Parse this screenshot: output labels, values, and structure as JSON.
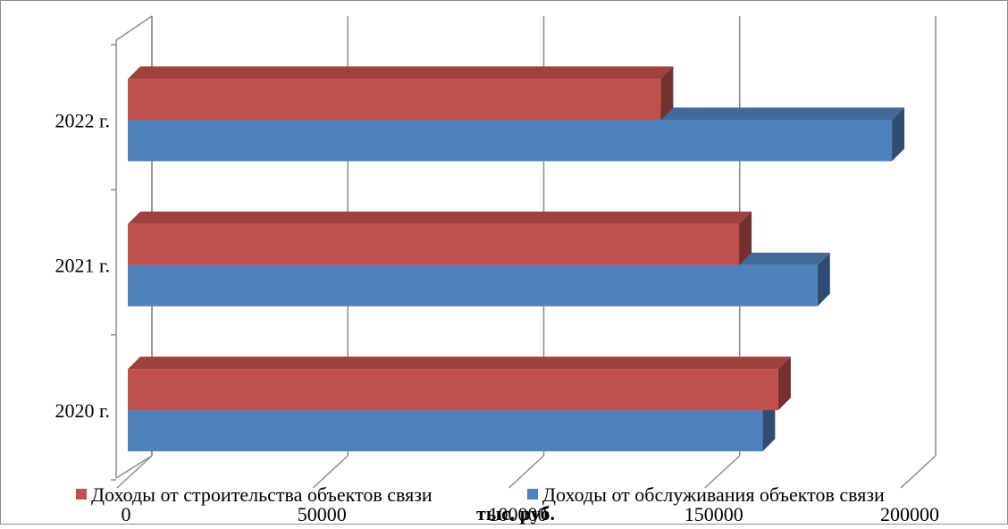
{
  "chart_data": {
    "type": "bar",
    "orientation": "horizontal",
    "three_d": true,
    "categories": [
      "2020 г.",
      "2021 г.",
      "2022 г."
    ],
    "series": [
      {
        "name": "Доходы от строительства объектов связи",
        "values": [
          166000,
          156000,
          136000
        ],
        "color": "#c0504d"
      },
      {
        "name": "Доходы от обслуживания объектов связи",
        "values": [
          162000,
          176000,
          195000
        ],
        "color": "#4f81bd"
      }
    ],
    "xlabel": "тыс. руб.",
    "xlim": [
      0,
      200000
    ],
    "xticks": [
      "0",
      "50000",
      "100000",
      "150000",
      "200000"
    ],
    "grid": true,
    "legend": "bottom"
  }
}
